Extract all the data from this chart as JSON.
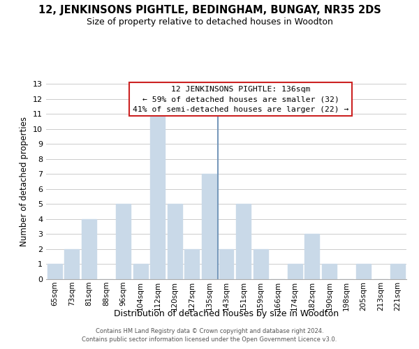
{
  "title": "12, JENKINSONS PIGHTLE, BEDINGHAM, BUNGAY, NR35 2DS",
  "subtitle": "Size of property relative to detached houses in Woodton",
  "xlabel": "Distribution of detached houses by size in Woodton",
  "ylabel": "Number of detached properties",
  "categories": [
    "65sqm",
    "73sqm",
    "81sqm",
    "88sqm",
    "96sqm",
    "104sqm",
    "112sqm",
    "120sqm",
    "127sqm",
    "135sqm",
    "143sqm",
    "151sqm",
    "159sqm",
    "166sqm",
    "174sqm",
    "182sqm",
    "190sqm",
    "198sqm",
    "205sqm",
    "213sqm",
    "221sqm"
  ],
  "values": [
    1,
    2,
    4,
    0,
    5,
    1,
    11,
    5,
    2,
    7,
    2,
    5,
    2,
    0,
    1,
    3,
    1,
    0,
    1,
    0,
    1
  ],
  "bar_color": "#c9d9e8",
  "highlight_index": 9,
  "highlight_line_color": "#7799bb",
  "ylim": [
    0,
    13
  ],
  "yticks": [
    0,
    1,
    2,
    3,
    4,
    5,
    6,
    7,
    8,
    9,
    10,
    11,
    12,
    13
  ],
  "annotation_title": "12 JENKINSONS PIGHTLE: 136sqm",
  "annotation_line1": "← 59% of detached houses are smaller (32)",
  "annotation_line2": "41% of semi-detached houses are larger (22) →",
  "annotation_box_color": "#ffffff",
  "annotation_box_edge": "#cc2222",
  "footer1": "Contains HM Land Registry data © Crown copyright and database right 2024.",
  "footer2": "Contains public sector information licensed under the Open Government Licence v3.0.",
  "bg_color": "#ffffff",
  "grid_color": "#cccccc"
}
